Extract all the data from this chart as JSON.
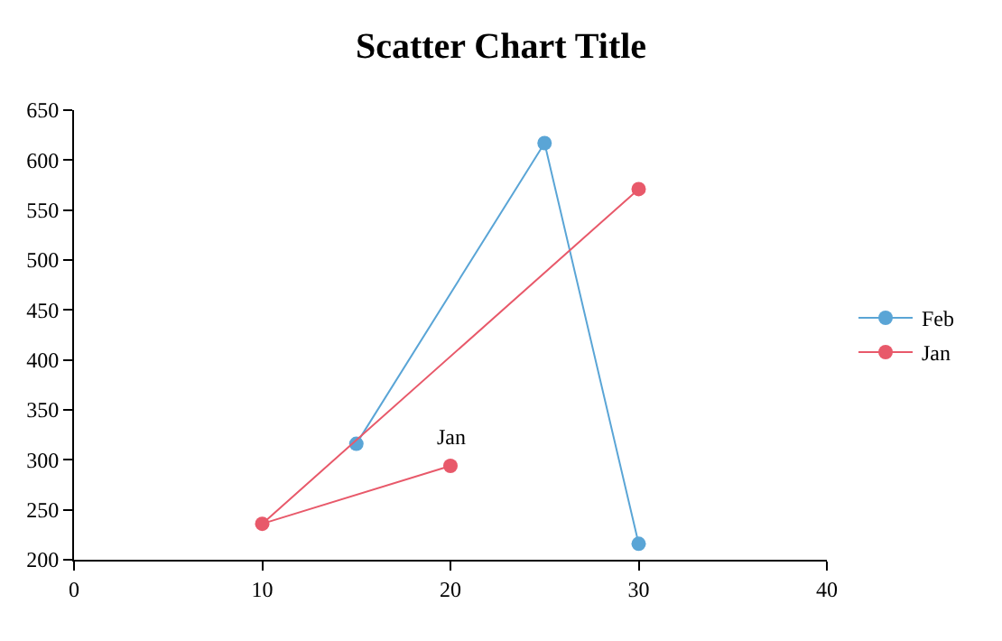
{
  "chart_data": {
    "type": "line",
    "title": "Scatter Chart Title",
    "series": [
      {
        "name": "Feb",
        "color": "#5aa5d6",
        "x": [
          15,
          25,
          30
        ],
        "values": [
          316,
          617,
          216
        ]
      },
      {
        "name": "Jan",
        "color": "#e8596a",
        "x": [
          20,
          10,
          30
        ],
        "values": [
          294,
          236,
          571
        ]
      }
    ],
    "annotations": [
      {
        "text": "Jan",
        "x": 20,
        "y": 294
      }
    ],
    "xlim": [
      0,
      40
    ],
    "xticks": [
      0,
      10,
      20,
      30,
      40
    ],
    "ylim": [
      200,
      650
    ],
    "yticks": [
      200,
      250,
      300,
      350,
      400,
      450,
      500,
      550,
      600,
      650
    ],
    "legend": "right",
    "marker": "circle",
    "line_style": "solid"
  }
}
